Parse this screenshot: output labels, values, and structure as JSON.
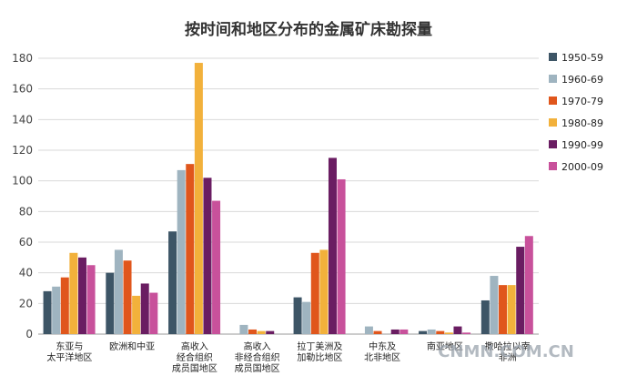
{
  "watermark": "CNMN.COM.CN",
  "chart_data": {
    "type": "bar",
    "title": "按时间和地区分布的金属矿床勘探量",
    "xlabel": "",
    "ylabel": "",
    "ylim": [
      0,
      180
    ],
    "yticks": [
      0,
      20,
      40,
      60,
      80,
      100,
      120,
      140,
      160,
      180
    ],
    "grid": true,
    "legend_position": "right",
    "categories": [
      "东亚与\n太平洋地区",
      "欧洲和中亚",
      "高收入\n经合组织\n成员国地区",
      "高收入\n非经合组织\n成员国地区",
      "拉丁美洲及\n加勒比地区",
      "中东及\n北非地区",
      "南亚地区",
      "撒哈拉以南\n非洲"
    ],
    "series": [
      {
        "name": "1950-59",
        "color": "#3d5566",
        "values": [
          28,
          40,
          67,
          0,
          24,
          0,
          2,
          22
        ]
      },
      {
        "name": "1960-69",
        "color": "#9fb4c0",
        "values": [
          31,
          55,
          107,
          6,
          21,
          5,
          3,
          38
        ]
      },
      {
        "name": "1970-79",
        "color": "#e0561c",
        "values": [
          37,
          48,
          111,
          3,
          53,
          2,
          2,
          32
        ]
      },
      {
        "name": "1980-89",
        "color": "#f2b13b",
        "values": [
          53,
          25,
          177,
          2,
          55,
          0,
          1,
          32
        ]
      },
      {
        "name": "1990-99",
        "color": "#6a1d62",
        "values": [
          50,
          33,
          102,
          2,
          115,
          3,
          5,
          57
        ]
      },
      {
        "name": "2000-09",
        "color": "#c8519b",
        "values": [
          45,
          27,
          87,
          0,
          101,
          3,
          1,
          64
        ]
      }
    ]
  }
}
